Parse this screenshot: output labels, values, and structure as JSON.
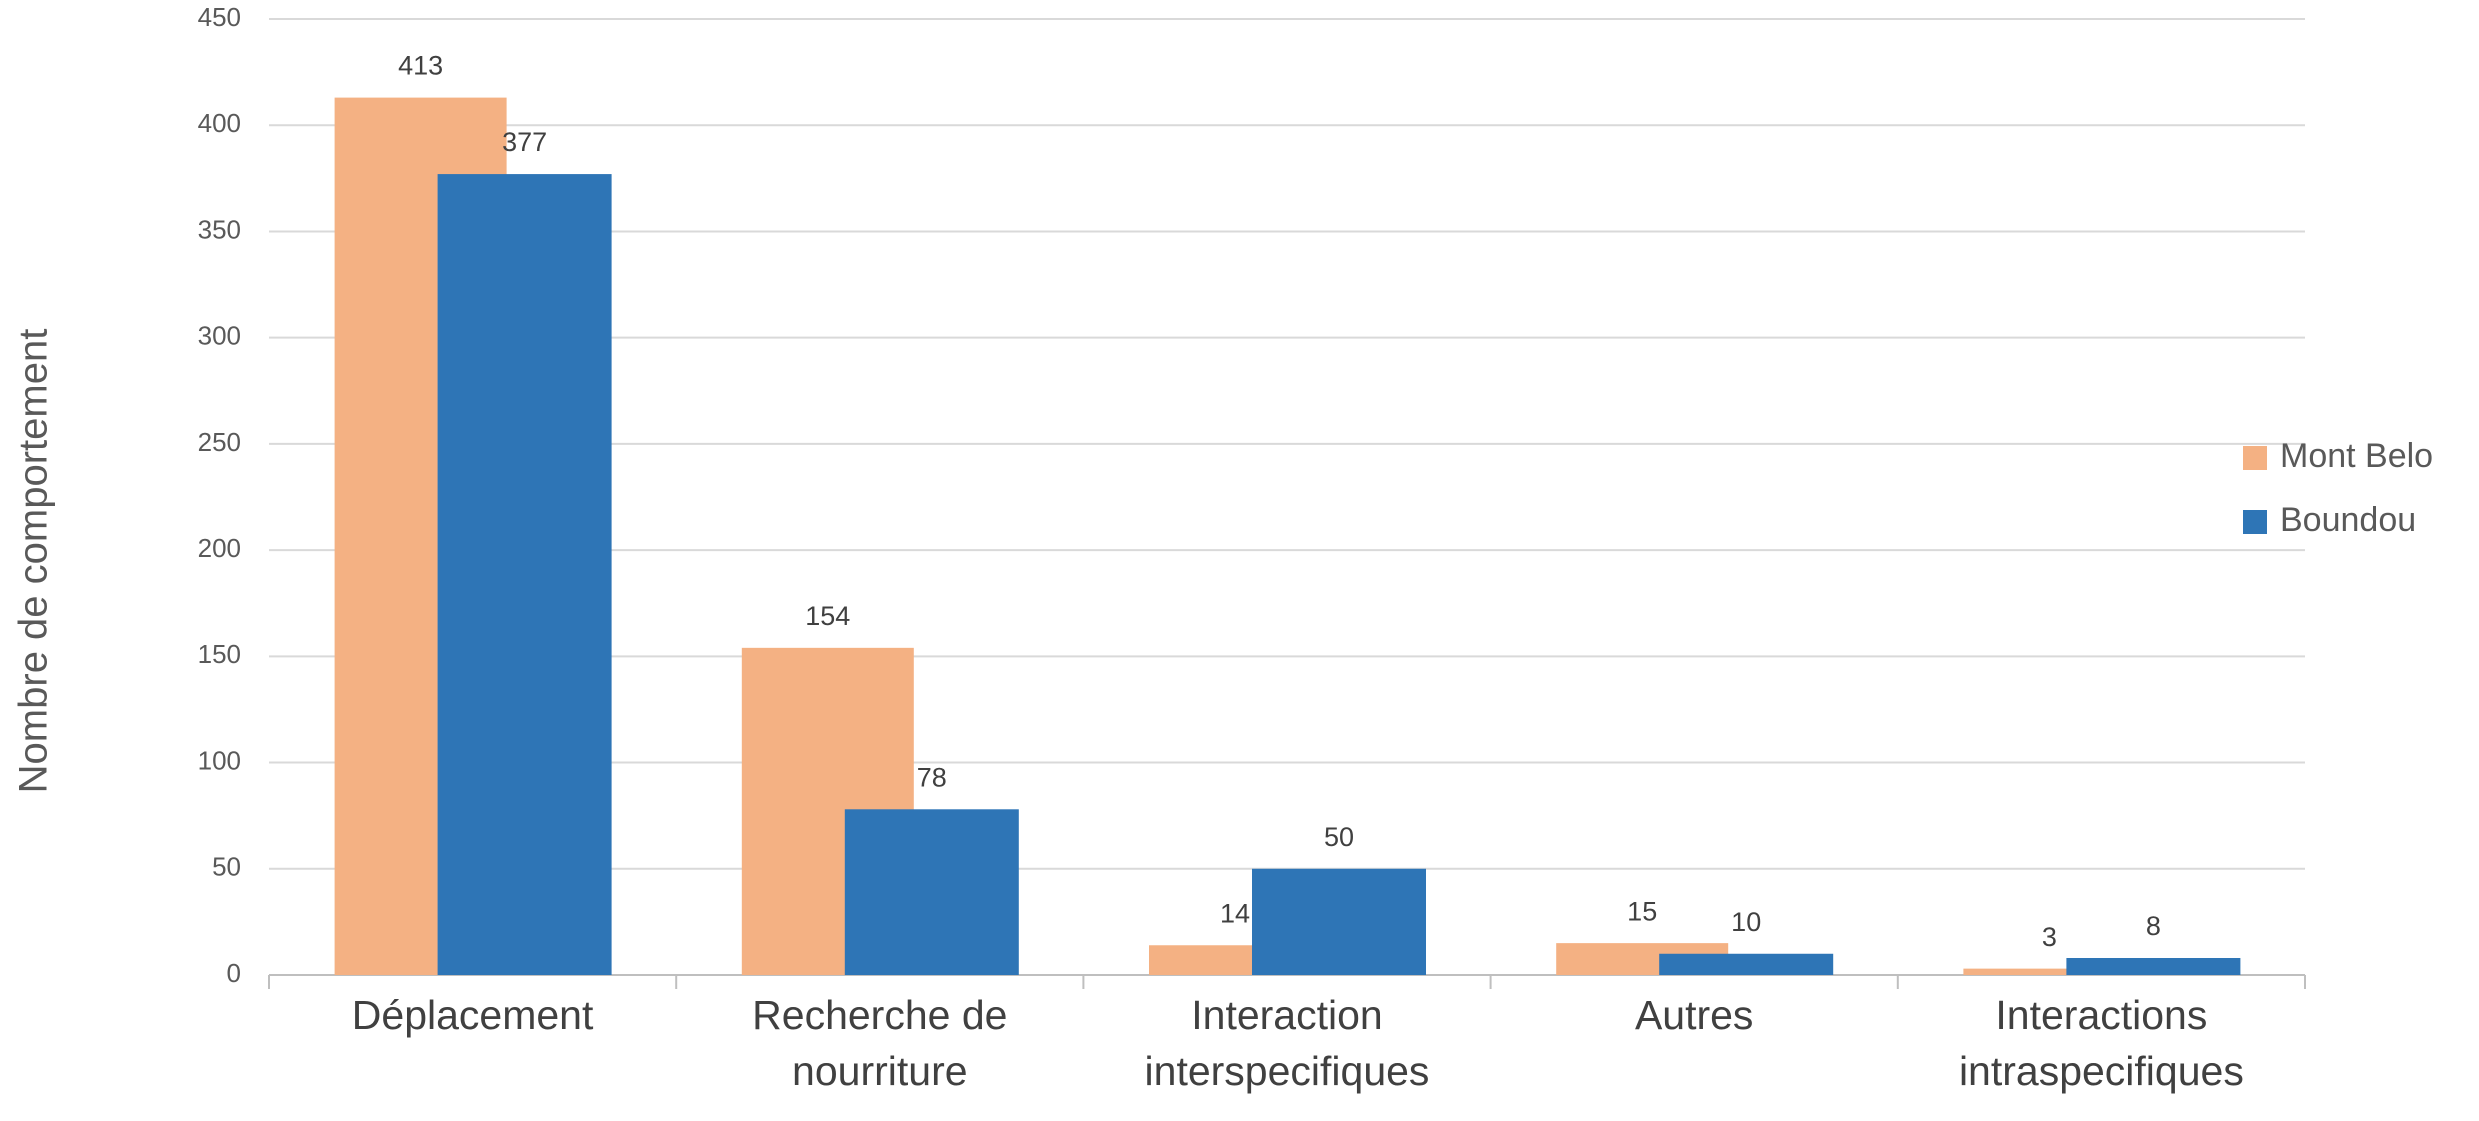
{
  "chart_data": {
    "type": "bar",
    "ylabel": "Nombre de comportement",
    "categories": [
      "Déplacement",
      "Recherche de nourriture",
      "Interaction interspecifiques",
      "Autres",
      "Interactions intraspecifiques"
    ],
    "series": [
      {
        "name": "Mont Belo",
        "color": "#F4B183",
        "values": [
          413,
          154,
          14,
          15,
          3
        ]
      },
      {
        "name": "Boundou",
        "color": "#2E75B6",
        "values": [
          377,
          78,
          50,
          10,
          8
        ]
      }
    ],
    "ylim": [
      0,
      450
    ],
    "yticks": [
      0,
      50,
      100,
      150,
      200,
      250,
      300,
      350,
      400,
      450
    ],
    "grid": true,
    "legend": "right"
  }
}
